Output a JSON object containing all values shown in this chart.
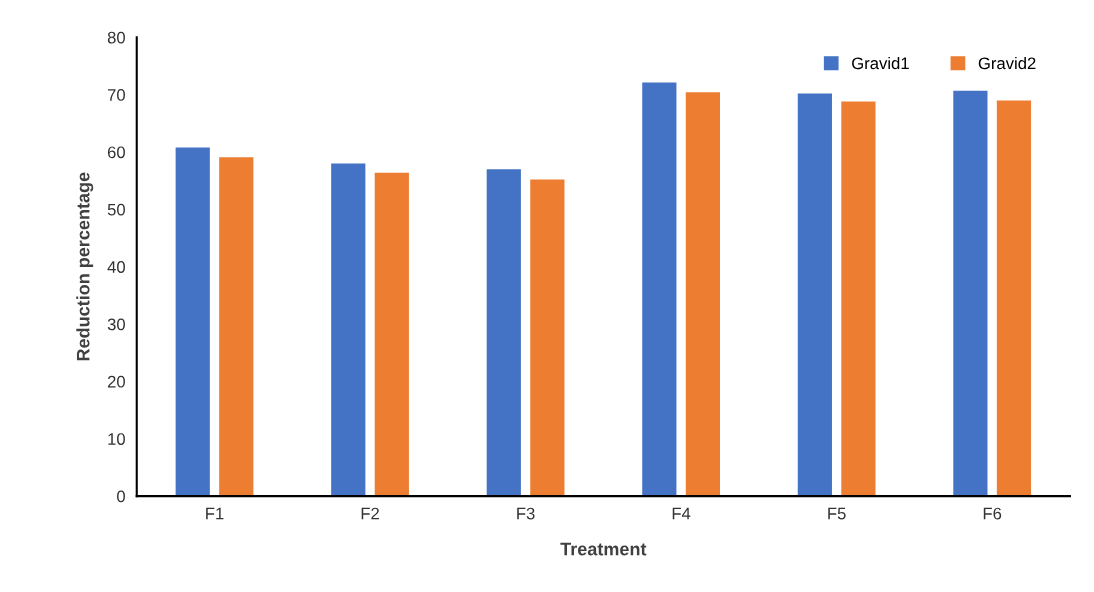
{
  "chart_data": {
    "type": "bar",
    "xlabel": "Treatment",
    "ylabel": "Reduction percentage",
    "categories": [
      "F1",
      "F2",
      "F3",
      "F4",
      "F5",
      "F6"
    ],
    "series": [
      {
        "name": "Gravid1",
        "color": "#4472c4",
        "values": [
          60.8,
          58.0,
          57.0,
          72.1,
          70.2,
          70.7
        ]
      },
      {
        "name": "Gravid2",
        "color": "#ed7d31",
        "values": [
          59.1,
          56.4,
          55.2,
          70.4,
          68.8,
          69.0
        ]
      }
    ],
    "ylim": [
      0,
      80
    ],
    "yticks": [
      0,
      10,
      20,
      30,
      40,
      50,
      60,
      70,
      80
    ],
    "grid": false,
    "legend": "top right"
  }
}
